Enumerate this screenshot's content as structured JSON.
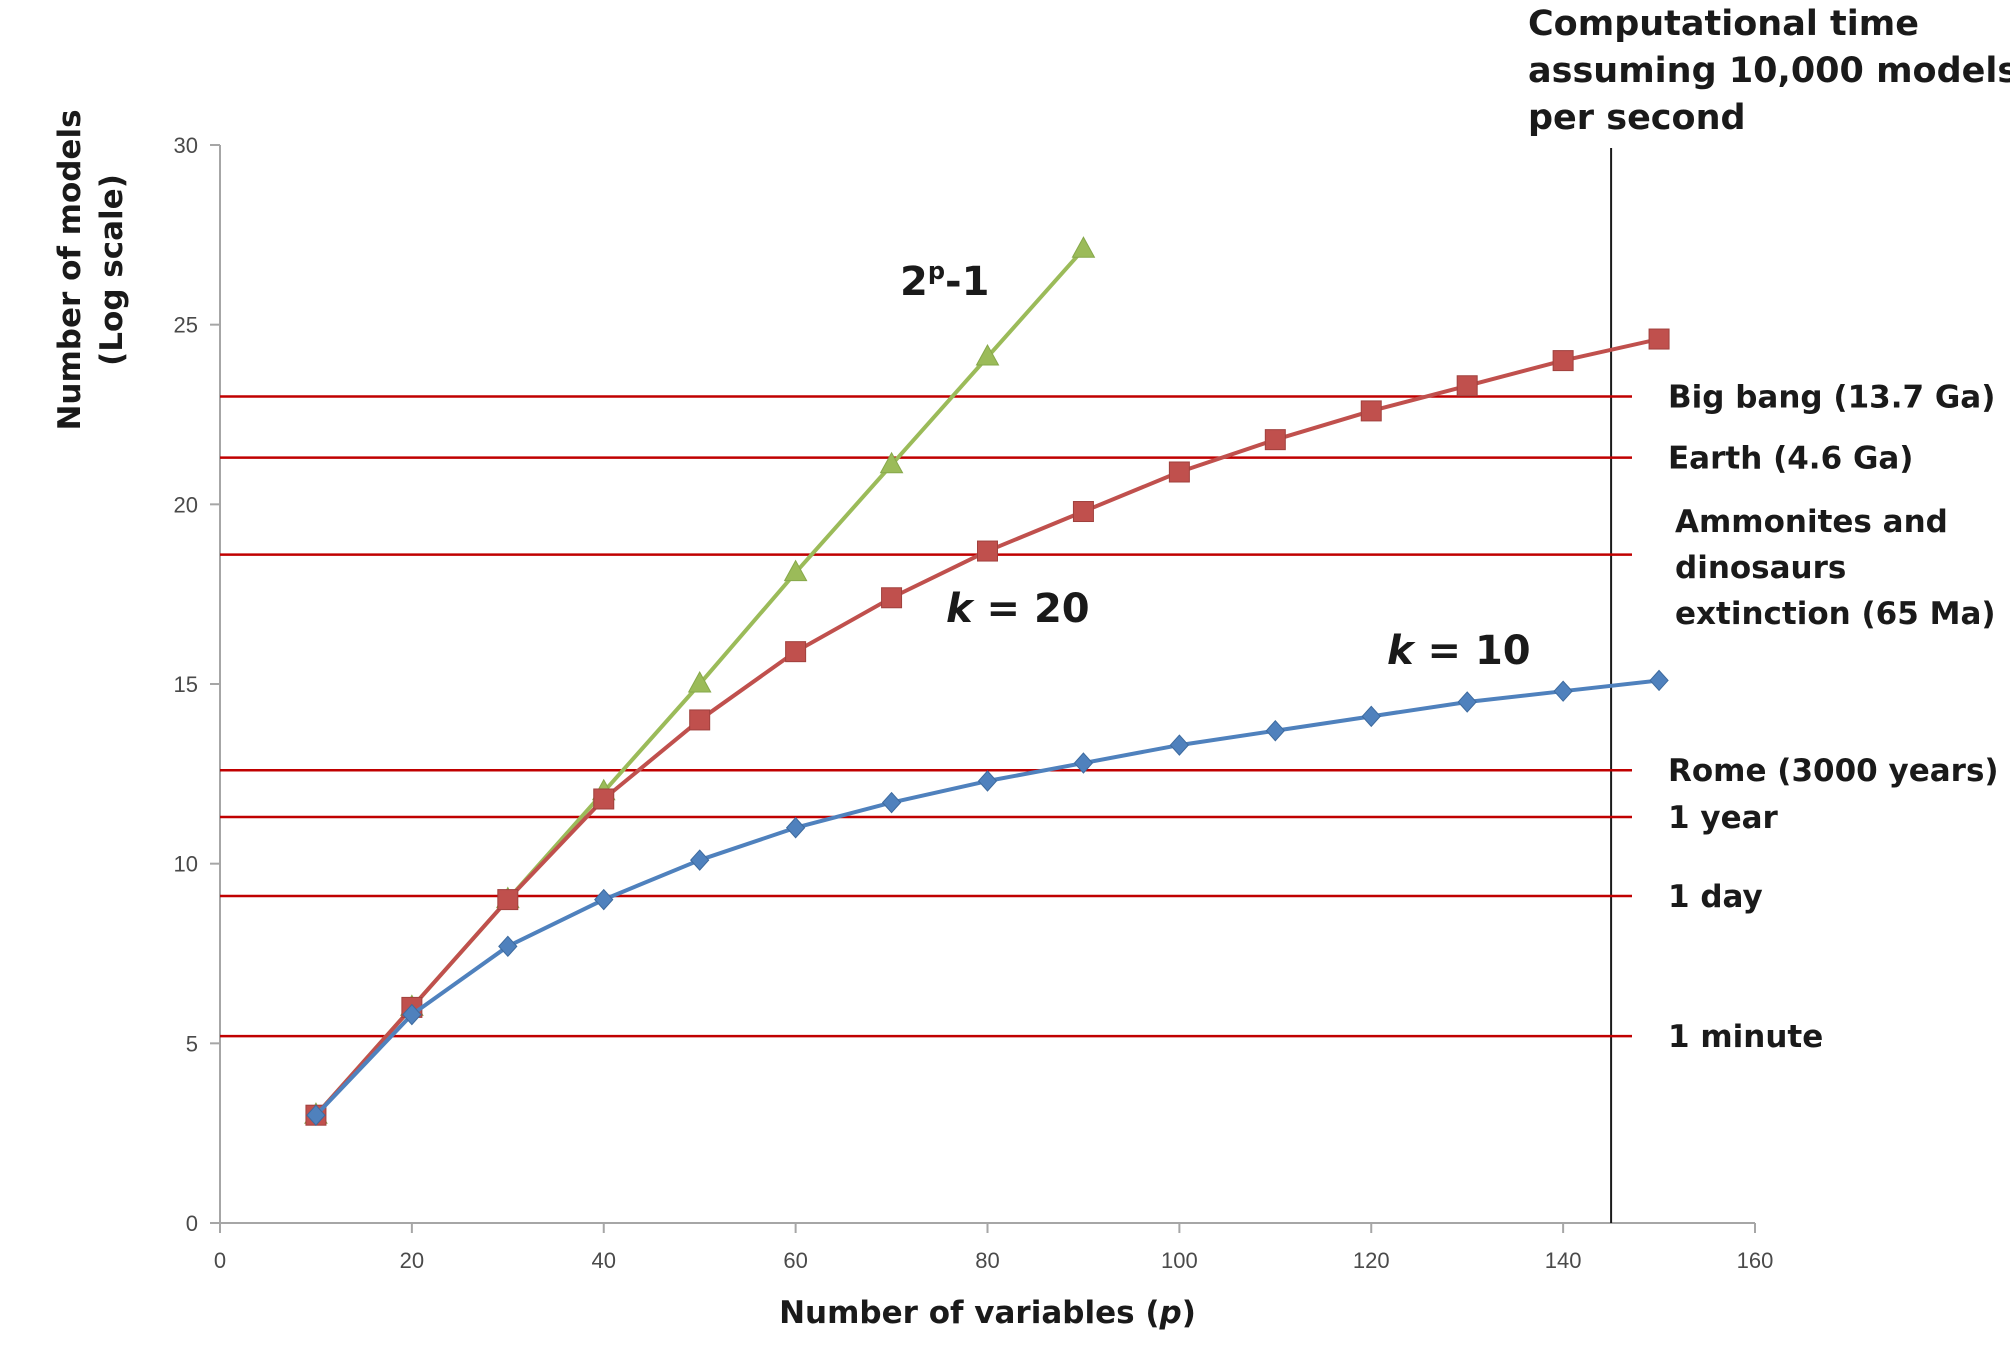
{
  "chart_data": {
    "type": "line",
    "xlabel_main": "Number of variables (",
    "xlabel_var": "p",
    "xlabel_close": ")",
    "ylabel_line1": "Number of models",
    "ylabel_line2": "(Log scale)",
    "xlim": [
      0,
      160
    ],
    "ylim": [
      0,
      30
    ],
    "xticks": [
      "0",
      "20",
      "40",
      "60",
      "80",
      "100",
      "120",
      "140",
      "160"
    ],
    "yticks": [
      "0",
      "5",
      "10",
      "15",
      "20",
      "25",
      "30"
    ],
    "grid": false,
    "series": [
      {
        "key": "s2p",
        "color": "#9bbb59",
        "marker": "triangle",
        "x": [
          10,
          20,
          30,
          40,
          50,
          60,
          70,
          80,
          90
        ],
        "y": [
          3.0,
          6.0,
          9.0,
          12.0,
          15.0,
          18.1,
          21.1,
          24.1,
          27.1
        ]
      },
      {
        "key": "k20",
        "color": "#c0504d",
        "marker": "square",
        "x": [
          10,
          20,
          30,
          40,
          50,
          60,
          70,
          80,
          90,
          100,
          110,
          120,
          130,
          140,
          150
        ],
        "y": [
          3.0,
          6.0,
          9.0,
          11.8,
          14.0,
          15.9,
          17.4,
          18.7,
          19.8,
          20.9,
          21.8,
          22.6,
          23.3,
          24.0,
          24.6
        ]
      },
      {
        "key": "k10",
        "color": "#4f81bd",
        "marker": "diamond",
        "x": [
          10,
          20,
          30,
          40,
          50,
          60,
          70,
          80,
          90,
          100,
          110,
          120,
          130,
          140,
          150
        ],
        "y": [
          3.0,
          5.8,
          7.7,
          9.0,
          10.1,
          11.0,
          11.7,
          12.3,
          12.8,
          13.3,
          13.7,
          14.1,
          14.5,
          14.8,
          15.1
        ]
      }
    ],
    "series_labels": {
      "s2p": {
        "base": "2",
        "sup": "p",
        "rest": "-1"
      },
      "k20": {
        "var": "k",
        "rest": " = 20"
      },
      "k10": {
        "var": "k",
        "rest": " = 10"
      }
    },
    "reference_lines": [
      {
        "y": 23.0,
        "label_lines": [
          "Big bang (13.7 Ga)"
        ]
      },
      {
        "y": 21.3,
        "label_lines": [
          "Earth  (4.6 Ga)"
        ]
      },
      {
        "y": 18.6,
        "label_lines": [
          "Ammonites  and",
          "dinosaurs",
          "extinction (65 Ma)"
        ]
      },
      {
        "y": 12.6,
        "label_lines": [
          "Rome (3000 years)"
        ]
      },
      {
        "y": 11.3,
        "label_lines": [
          "1 year"
        ]
      },
      {
        "y": 9.1,
        "label_lines": [
          "1 day"
        ]
      },
      {
        "y": 5.2,
        "label_lines": [
          "1 minute"
        ]
      }
    ],
    "reference_line_color": "#c00000",
    "vertical_line_x": 145,
    "vertical_line_title": [
      "Computational time",
      "assuming 10,000 models",
      "per second"
    ]
  }
}
